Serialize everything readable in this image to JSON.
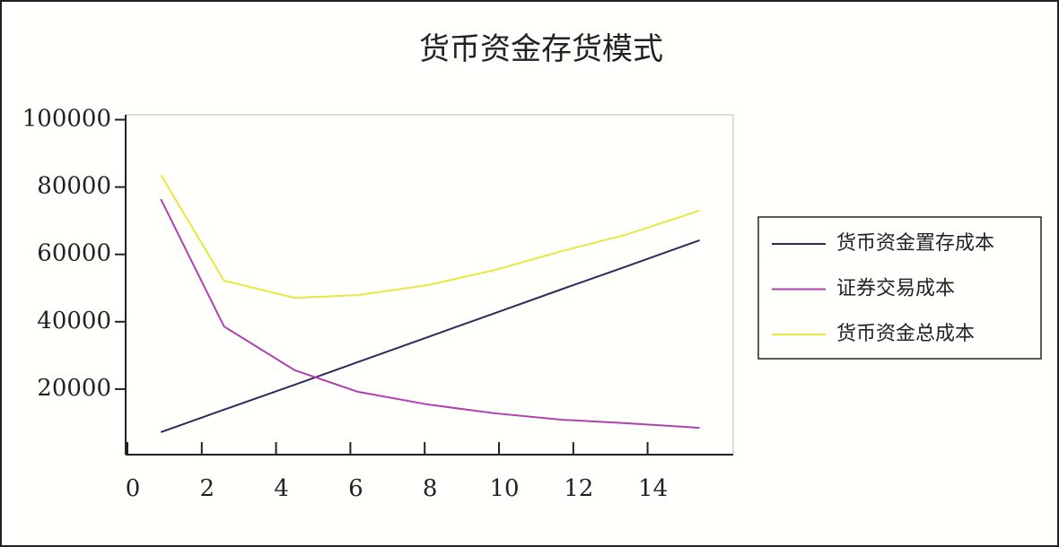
{
  "chart_data": {
    "type": "line",
    "title": "货币资金存货模式",
    "x": [
      0.9,
      2.6,
      4.5,
      6.2,
      8.1,
      9.9,
      11.7,
      13.4,
      15.4
    ],
    "series": [
      {
        "name": "货币资金置存成本",
        "color": "#2b2b5e",
        "values": [
          7200,
          13900,
          21300,
          28000,
          35500,
          42600,
          49700,
          56300,
          64200
        ]
      },
      {
        "name": "证券交易成本",
        "color": "#b040b0",
        "values": [
          76400,
          38600,
          25600,
          19200,
          15400,
          12800,
          10900,
          9900,
          8500
        ]
      },
      {
        "name": "货币资金总成本",
        "color": "#e8e840",
        "values": [
          83600,
          52200,
          47100,
          47900,
          50900,
          55400,
          61000,
          65800,
          73000
        ]
      }
    ],
    "xlim": [
      0,
      16.3
    ],
    "xticks": [
      0,
      2,
      4,
      6,
      8,
      10,
      12,
      14
    ],
    "ylim": [
      0,
      100000
    ],
    "yticks": [
      20000,
      40000,
      60000,
      80000,
      100000
    ],
    "grid": false,
    "legend": "right"
  }
}
